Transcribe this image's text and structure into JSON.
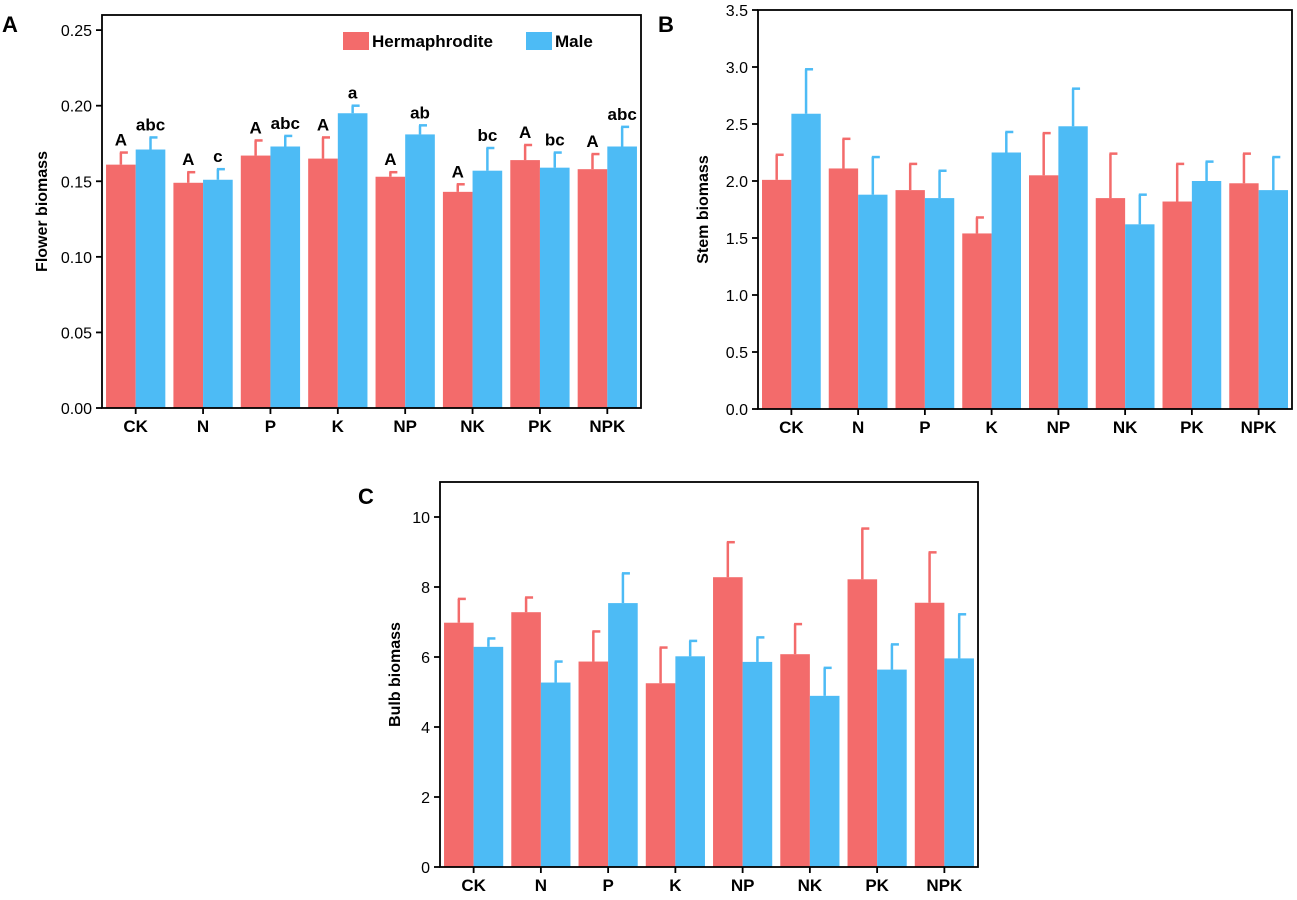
{
  "colors": {
    "hermaphrodite": "#F36B6B",
    "male": "#4DBBF5"
  },
  "chart_data": [
    {
      "panel": "A",
      "type": "bar",
      "ylabel": "Flower biomass",
      "xlabel": "",
      "ylim": [
        0,
        0.26
      ],
      "yticks": [
        0.0,
        0.05,
        0.1,
        0.15,
        0.2,
        0.25
      ],
      "ytick_labels": [
        "0.00",
        "0.05",
        "0.10",
        "0.15",
        "0.20",
        "0.25"
      ],
      "categories": [
        "CK",
        "N",
        "P",
        "K",
        "NP",
        "NK",
        "PK",
        "NPK"
      ],
      "legend": [
        "Hermaphrodite",
        "Male"
      ],
      "legend_position": "top-right",
      "series": [
        {
          "name": "Hermaphrodite",
          "values": [
            0.161,
            0.149,
            0.167,
            0.165,
            0.153,
            0.143,
            0.164,
            0.158
          ],
          "errors": [
            0.008,
            0.007,
            0.01,
            0.014,
            0.003,
            0.005,
            0.01,
            0.01
          ],
          "letters": [
            "A",
            "A",
            "A",
            "A",
            "A",
            "A",
            "A",
            "A"
          ]
        },
        {
          "name": "Male",
          "values": [
            0.171,
            0.151,
            0.173,
            0.195,
            0.181,
            0.157,
            0.159,
            0.173
          ],
          "errors": [
            0.008,
            0.007,
            0.007,
            0.005,
            0.006,
            0.015,
            0.01,
            0.013
          ],
          "letters": [
            "abc",
            "c",
            "abc",
            "a",
            "ab",
            "bc",
            "bc",
            "abc"
          ]
        }
      ]
    },
    {
      "panel": "B",
      "type": "bar",
      "ylabel": "Stem biomass",
      "xlabel": "",
      "ylim": [
        0,
        3.5
      ],
      "yticks": [
        0.0,
        0.5,
        1.0,
        1.5,
        2.0,
        2.5,
        3.0,
        3.5
      ],
      "ytick_labels": [
        "0.0",
        "0.5",
        "1.0",
        "1.5",
        "2.0",
        "2.5",
        "3.0",
        "3.5"
      ],
      "categories": [
        "CK",
        "N",
        "P",
        "K",
        "NP",
        "NK",
        "PK",
        "NPK"
      ],
      "series": [
        {
          "name": "Hermaphrodite",
          "values": [
            2.01,
            2.11,
            1.92,
            1.54,
            2.05,
            1.85,
            1.82,
            1.98
          ],
          "errors": [
            0.22,
            0.26,
            0.23,
            0.14,
            0.37,
            0.39,
            0.33,
            0.26
          ]
        },
        {
          "name": "Male",
          "values": [
            2.59,
            1.88,
            1.85,
            2.25,
            2.48,
            1.62,
            2.0,
            1.92
          ],
          "errors": [
            0.39,
            0.33,
            0.24,
            0.18,
            0.33,
            0.26,
            0.17,
            0.29
          ]
        }
      ]
    },
    {
      "panel": "C",
      "type": "bar",
      "ylabel": "Bulb biomass",
      "xlabel": "",
      "ylim": [
        0,
        11
      ],
      "yticks": [
        0,
        2,
        4,
        6,
        8,
        10
      ],
      "ytick_labels": [
        "0",
        "2",
        "4",
        "6",
        "8",
        "10"
      ],
      "categories": [
        "CK",
        "N",
        "P",
        "K",
        "NP",
        "NK",
        "PK",
        "NPK"
      ],
      "series": [
        {
          "name": "Hermaphrodite",
          "values": [
            6.98,
            7.28,
            5.87,
            5.25,
            8.28,
            6.08,
            8.22,
            7.55
          ],
          "errors": [
            0.68,
            0.42,
            0.86,
            1.02,
            1.0,
            0.86,
            1.45,
            1.44
          ]
        },
        {
          "name": "Male",
          "values": [
            6.29,
            5.27,
            7.54,
            6.02,
            5.86,
            4.89,
            5.64,
            5.96
          ],
          "errors": [
            0.24,
            0.6,
            0.85,
            0.44,
            0.7,
            0.8,
            0.72,
            1.26
          ]
        }
      ]
    }
  ]
}
